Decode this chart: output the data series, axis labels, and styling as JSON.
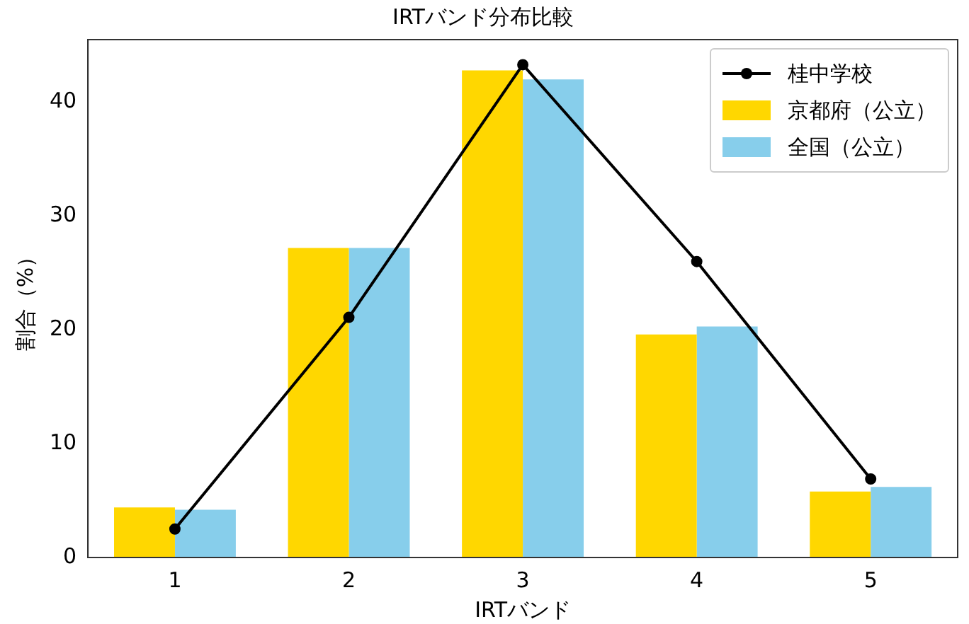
{
  "chart_data": {
    "type": "bar",
    "title": "IRTバンド分布比較",
    "xlabel": "IRTバンド",
    "ylabel": "割合（%）",
    "categories": [
      "1",
      "2",
      "3",
      "4",
      "5"
    ],
    "series": [
      {
        "name": "桂中学校",
        "type": "line",
        "color": "#000000",
        "values": [
          2.5,
          21.1,
          43.3,
          26.0,
          6.9
        ]
      },
      {
        "name": "京都府（公立）",
        "color": "#ffd700",
        "values": [
          4.4,
          27.2,
          42.8,
          19.6,
          5.8
        ]
      },
      {
        "name": "全国（公立）",
        "color": "#87ceeb",
        "values": [
          4.2,
          27.2,
          42.0,
          20.3,
          6.2
        ]
      }
    ],
    "ylim": [
      0,
      45.5
    ],
    "yticks": [
      0,
      10,
      20,
      30,
      40
    ],
    "grid": false,
    "legend": "top right",
    "marker": "circle",
    "line_style": "solid"
  }
}
